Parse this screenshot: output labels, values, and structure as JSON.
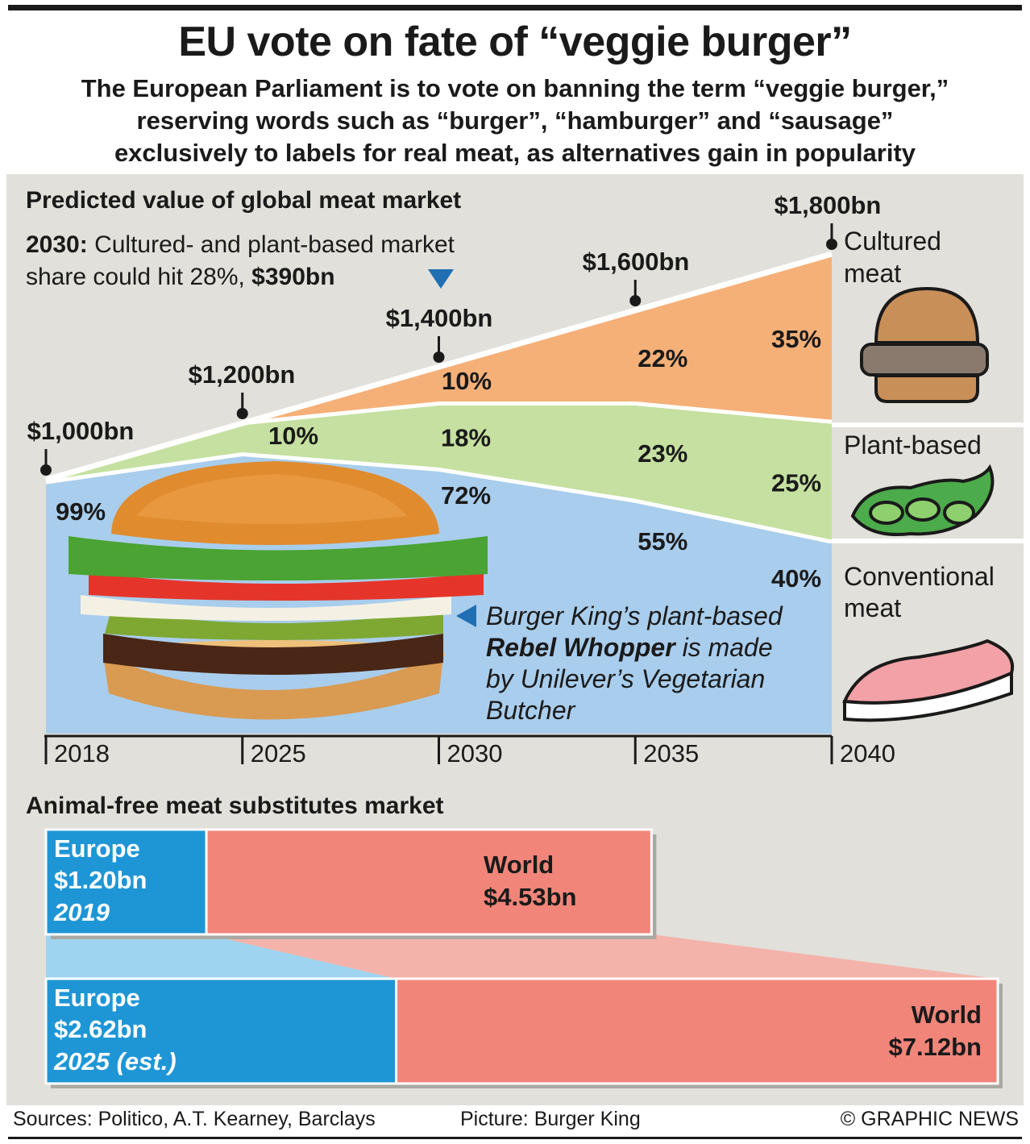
{
  "title": "EU vote on fate of “veggie burger”",
  "subtitle_lines": [
    "The European Parliament is to vote on banning the term “veggie burger,”",
    "reserving words such as “burger”, “hamburger” and “sausage”",
    "exclusively to labels for real meat, as alternatives gain in popularity"
  ],
  "annotation": {
    "bold": "2030:",
    "line1": " Cultured- and plant-based market",
    "line2": "share could hit 28%, ",
    "line2_bold": "$390bn"
  },
  "burger_note": {
    "line1": "Burger King’s plant-based",
    "bold": "Rebel Whopper",
    "line2_rest": " is made",
    "line3": "by Unilever’s Vegetarian",
    "line4": "Butcher"
  },
  "legend": {
    "cultured": [
      "Cultured",
      "meat"
    ],
    "plant": [
      "Plant-based"
    ],
    "conventional": [
      "Conventional",
      "meat"
    ]
  },
  "colors": {
    "cultured": "#f5b078",
    "plant": "#c5e0a0",
    "conventional": "#a9cdec",
    "panel": "#e1e0da",
    "europe": "#1e96d6",
    "world": "#f2857a",
    "marker_blue": "#1f6fb2"
  },
  "chart_data": [
    {
      "type": "area",
      "title": "Predicted value of global meat market",
      "x": [
        "2018",
        "2025",
        "2030",
        "2035",
        "2040"
      ],
      "totals": [
        1000,
        1200,
        1400,
        1600,
        1800
      ],
      "total_labels": [
        "$1,000bn",
        "$1,200bn",
        "$1,400bn",
        "$1,600bn",
        "$1,800bn"
      ],
      "unit": "$bn",
      "series": [
        {
          "name": "Conventional meat",
          "values": [
            99,
            90,
            72,
            55,
            40
          ],
          "labels": [
            "99%",
            "",
            "72%",
            "55%",
            "40%"
          ]
        },
        {
          "name": "Plant-based",
          "values": [
            1,
            10,
            18,
            23,
            25
          ],
          "labels": [
            "",
            "10%",
            "18%",
            "23%",
            "25%"
          ]
        },
        {
          "name": "Cultured meat",
          "values": [
            0,
            0,
            10,
            22,
            35
          ],
          "labels": [
            "",
            "",
            "10%",
            "22%",
            "35%"
          ]
        }
      ]
    },
    {
      "type": "bar",
      "title": "Animal-free meat substitutes market",
      "categories": [
        "2019",
        "2025 (est.)"
      ],
      "series": [
        {
          "name": "Europe",
          "values": [
            1.2,
            2.62
          ],
          "labels": [
            "$1.20bn",
            "$2.62bn"
          ]
        },
        {
          "name": "World",
          "values": [
            4.53,
            7.12
          ],
          "labels": [
            "$4.53bn",
            "$7.12bn"
          ]
        }
      ]
    }
  ],
  "footer": {
    "sources": "Sources: Politico, A.T. Kearney, Barclays",
    "picture": "Picture: Burger King",
    "credit": "© GRAPHIC NEWS"
  }
}
